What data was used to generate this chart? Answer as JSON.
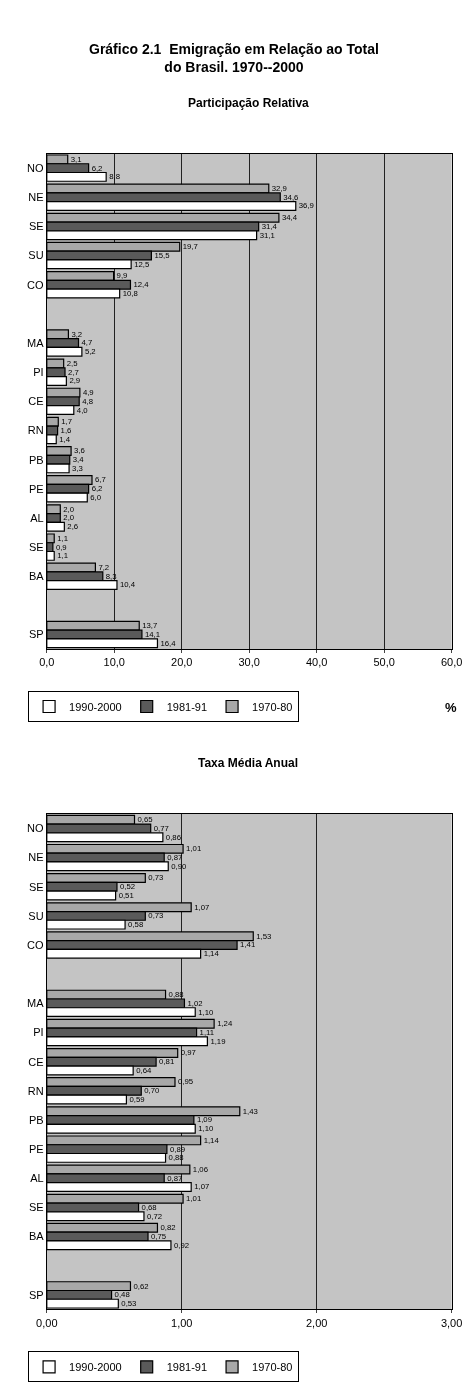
{
  "chart_data": [
    {
      "type": "bar",
      "orientation": "horizontal",
      "title": "Gráfico 2.1  Emigração em Relação ao Total do Brasil. 1970--2000",
      "subtitle": "Participação Relativa",
      "categories": [
        "NO",
        "NE",
        "SE",
        "SU",
        "CO",
        null,
        "MA",
        "PI",
        "CE",
        "RN",
        "PB",
        "PE",
        "AL",
        "SE",
        "BA",
        null,
        "SP"
      ],
      "series": [
        {
          "name": "1970-80",
          "color": "#a8a8a8",
          "values": [
            3.1,
            32.9,
            34.4,
            19.7,
            9.9,
            null,
            3.2,
            2.5,
            4.9,
            1.7,
            3.6,
            6.7,
            2.0,
            1.1,
            7.2,
            null,
            13.7
          ],
          "value_labels": [
            "3,1",
            "32,9",
            "34,4",
            "19,7",
            "9,9",
            null,
            "3,2",
            "2,5",
            "4,9",
            "1,7",
            "3,6",
            "6,7",
            "2,0",
            "1,1",
            "7,2",
            null,
            "13,7"
          ]
        },
        {
          "name": "1981-91",
          "color": "#5a5a5a",
          "values": [
            6.2,
            34.6,
            31.4,
            15.5,
            12.4,
            null,
            4.7,
            2.7,
            4.8,
            1.6,
            3.4,
            6.2,
            2.0,
            0.9,
            8.3,
            null,
            14.1
          ],
          "value_labels": [
            "6,2",
            "34,6",
            "31,4",
            "15,5",
            "12,4",
            null,
            "4,7",
            "2,7",
            "4,8",
            "1,6",
            "3,4",
            "6,2",
            "2,0",
            "0,9",
            "8,3",
            null,
            "14,1"
          ]
        },
        {
          "name": "1990-2000",
          "color": "#ffffff",
          "values": [
            8.8,
            36.9,
            31.1,
            12.5,
            10.8,
            null,
            5.2,
            2.9,
            4.0,
            1.4,
            3.3,
            6.0,
            2.6,
            1.1,
            10.4,
            null,
            16.4
          ],
          "value_labels": [
            "8,8",
            "36,9",
            "31,1",
            "12,5",
            "10,8",
            null,
            "5,2",
            "2,9",
            "4,0",
            "1,4",
            "3,3",
            "6,0",
            "2,6",
            "1,1",
            "10,4",
            null,
            "16,4"
          ]
        }
      ],
      "xlim": [
        0,
        60
      ],
      "xticks": [
        {
          "value": 0,
          "label": "0,0"
        },
        {
          "value": 10,
          "label": "10,0"
        },
        {
          "value": 20,
          "label": "20,0"
        },
        {
          "value": 30,
          "label": "30,0"
        },
        {
          "value": 40,
          "label": "40,0"
        },
        {
          "value": 50,
          "label": "50,0"
        },
        {
          "value": 60,
          "label": "60,0"
        }
      ],
      "grid": "x",
      "legend": "bottom",
      "annotations": [
        "%"
      ]
    },
    {
      "type": "bar",
      "orientation": "horizontal",
      "title": "Taxa Média Anual",
      "categories": [
        "NO",
        "NE",
        "SE",
        "SU",
        "CO",
        null,
        "MA",
        "PI",
        "CE",
        "RN",
        "PB",
        "PE",
        "AL",
        "SE",
        "BA",
        null,
        "SP"
      ],
      "series": [
        {
          "name": "1970-80",
          "color": "#a8a8a8",
          "values": [
            0.65,
            1.01,
            0.73,
            1.07,
            1.53,
            null,
            0.88,
            1.24,
            0.97,
            0.95,
            1.43,
            1.14,
            1.06,
            1.01,
            0.82,
            null,
            0.62
          ],
          "value_labels": [
            "0,65",
            "1,01",
            "0,73",
            "1,07",
            "1,53",
            null,
            "0,88",
            "1,24",
            "0,97",
            "0,95",
            "1,43",
            "1,14",
            "1,06",
            "1,01",
            "0,82",
            null,
            "0,62"
          ]
        },
        {
          "name": "1981-91",
          "color": "#5a5a5a",
          "values": [
            0.77,
            0.87,
            0.52,
            0.73,
            1.41,
            null,
            1.02,
            1.11,
            0.81,
            0.7,
            1.09,
            0.89,
            0.87,
            0.68,
            0.75,
            null,
            0.48
          ],
          "value_labels": [
            "0,77",
            "0,87",
            "0,52",
            "0,73",
            "1,41",
            null,
            "1,02",
            "1,11",
            "0,81",
            "0,70",
            "1,09",
            "0,89",
            "0,87",
            "0,68",
            "0,75",
            null,
            "0,48"
          ]
        },
        {
          "name": "1990-2000",
          "color": "#ffffff",
          "values": [
            0.86,
            0.9,
            0.51,
            0.58,
            1.14,
            null,
            1.1,
            1.19,
            0.64,
            0.59,
            1.1,
            0.88,
            1.07,
            0.72,
            0.92,
            null,
            0.53
          ],
          "value_labels": [
            "0,86",
            "0,90",
            "0,51",
            "0,58",
            "1,14",
            null,
            "1,10",
            "1,19",
            "0,64",
            "0,59",
            "1,10",
            "0,88",
            "1,07",
            "0,72",
            "0,92",
            null,
            "0,53"
          ]
        }
      ],
      "xlim": [
        0,
        3
      ],
      "xticks": [
        {
          "value": 0,
          "label": "0,00"
        },
        {
          "value": 1,
          "label": "1,00"
        },
        {
          "value": 2,
          "label": "2,00"
        },
        {
          "value": 3,
          "label": "3,00"
        }
      ],
      "grid": "x",
      "legend": "bottom"
    }
  ]
}
